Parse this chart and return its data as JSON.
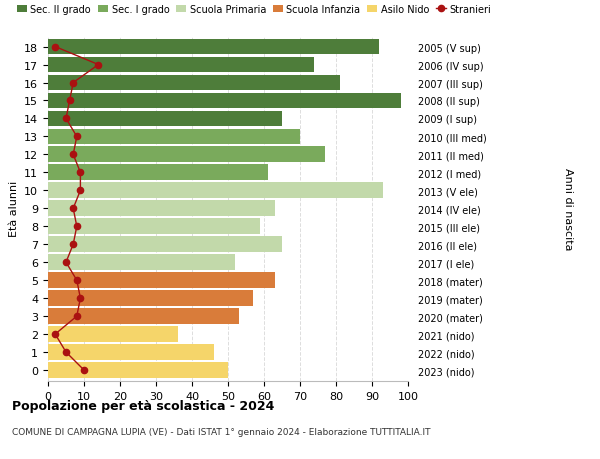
{
  "ages": [
    18,
    17,
    16,
    15,
    14,
    13,
    12,
    11,
    10,
    9,
    8,
    7,
    6,
    5,
    4,
    3,
    2,
    1,
    0
  ],
  "bar_values": [
    92,
    74,
    81,
    98,
    65,
    70,
    77,
    61,
    93,
    63,
    59,
    65,
    52,
    63,
    57,
    53,
    36,
    46,
    50
  ],
  "stranieri": [
    2,
    14,
    7,
    6,
    5,
    8,
    7,
    9,
    9,
    7,
    8,
    7,
    5,
    8,
    9,
    8,
    2,
    5,
    10
  ],
  "right_labels": [
    "2005 (V sup)",
    "2006 (IV sup)",
    "2007 (III sup)",
    "2008 (II sup)",
    "2009 (I sup)",
    "2010 (III med)",
    "2011 (II med)",
    "2012 (I med)",
    "2013 (V ele)",
    "2014 (IV ele)",
    "2015 (III ele)",
    "2016 (II ele)",
    "2017 (I ele)",
    "2018 (mater)",
    "2019 (mater)",
    "2020 (mater)",
    "2021 (nido)",
    "2022 (nido)",
    "2023 (nido)"
  ],
  "bar_colors": [
    "#4e7d3a",
    "#4e7d3a",
    "#4e7d3a",
    "#4e7d3a",
    "#4e7d3a",
    "#7aaa5c",
    "#7aaa5c",
    "#7aaa5c",
    "#c2d9aa",
    "#c2d9aa",
    "#c2d9aa",
    "#c2d9aa",
    "#c2d9aa",
    "#d97c3a",
    "#d97c3a",
    "#d97c3a",
    "#f5d56a",
    "#f5d56a",
    "#f5d56a"
  ],
  "legend_labels": [
    "Sec. II grado",
    "Sec. I grado",
    "Scuola Primaria",
    "Scuola Infanzia",
    "Asilo Nido",
    "Stranieri"
  ],
  "legend_colors": [
    "#4e7d3a",
    "#7aaa5c",
    "#c2d9aa",
    "#d97c3a",
    "#f5d56a",
    "#aa1111"
  ],
  "stranieri_color": "#aa1111",
  "ylabel": "Età alunni",
  "right_ylabel": "Anni di nascita",
  "title": "Popolazione per età scolastica - 2024",
  "subtitle": "COMUNE DI CAMPAGNA LUPIA (VE) - Dati ISTAT 1° gennaio 2024 - Elaborazione TUTTITALIA.IT",
  "xlim": [
    0,
    100
  ],
  "background_color": "#ffffff",
  "grid_color": "#dddddd",
  "bar_height": 0.88
}
